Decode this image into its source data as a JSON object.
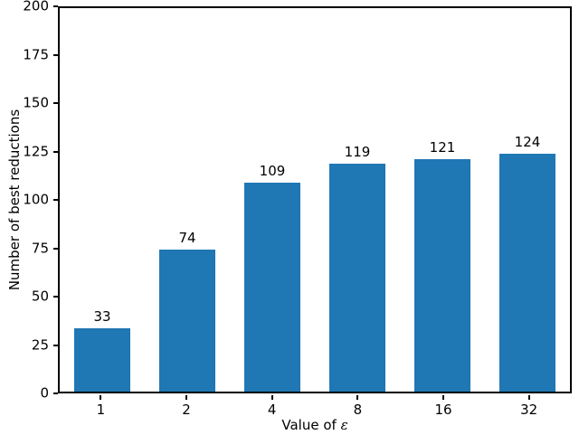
{
  "chart_data": {
    "type": "bar",
    "title": "",
    "categories": [
      "1",
      "2",
      "4",
      "8",
      "16",
      "32"
    ],
    "values": [
      33,
      74,
      109,
      119,
      121,
      124
    ],
    "bar_labels": [
      "33",
      "74",
      "109",
      "119",
      "121",
      "124"
    ],
    "xlabel_prefix": "Value of ",
    "xlabel_symbol": "ε",
    "xlabel_full": "Value of ε",
    "ylabel": "Number of best reductions",
    "ylim": [
      0,
      200
    ],
    "yticks": [
      "0",
      "25",
      "50",
      "75",
      "100",
      "125",
      "150",
      "175",
      "200"
    ],
    "bar_color": "#1f77b4",
    "axis_color": "#000000",
    "background_color": "#ffffff",
    "grid": false,
    "legend_position": "none",
    "bar_width_fraction": 0.65
  }
}
